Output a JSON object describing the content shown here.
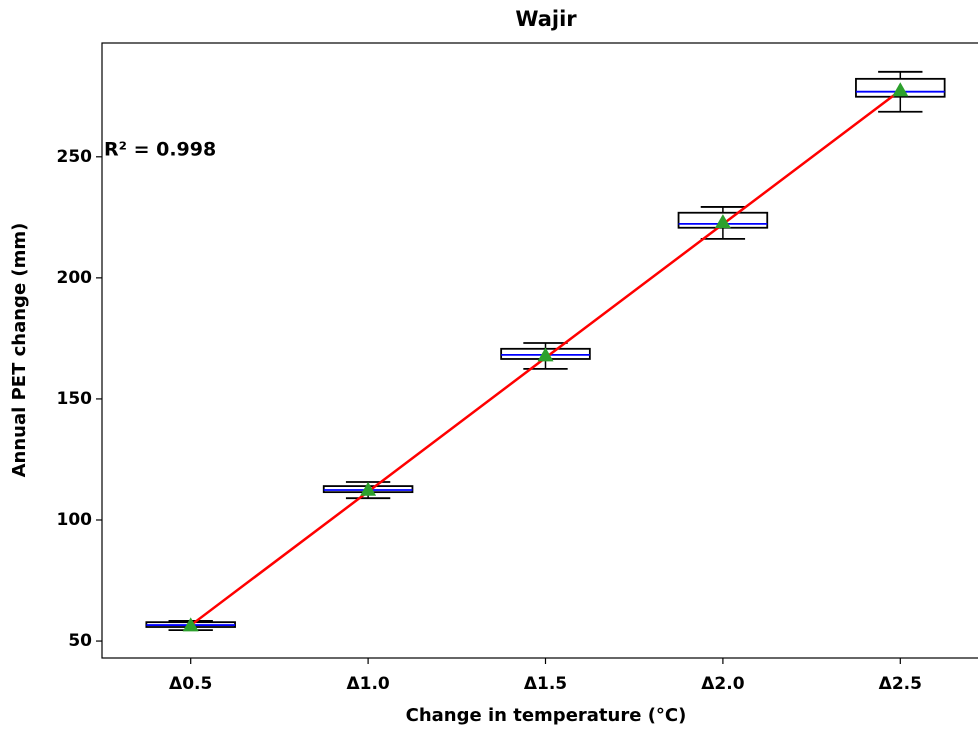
{
  "chart_data": {
    "type": "box",
    "title": "Wajir",
    "x_label": "Change in temperature (°C)",
    "y_label": "Annual PET change (mm)",
    "annotation": "R² = 0.998",
    "categories": [
      "Δ0.5",
      "Δ1.0",
      "Δ1.5",
      "Δ2.0",
      "Δ2.5"
    ],
    "boxes": [
      {
        "min": 54.5,
        "q1": 55.8,
        "median": 56.6,
        "q3": 57.8,
        "max": 58.3,
        "mean": 56.5
      },
      {
        "min": 109,
        "q1": 111.5,
        "median": 112.4,
        "q3": 114,
        "max": 115.7,
        "mean": 112.5
      },
      {
        "min": 162.4,
        "q1": 166.5,
        "median": 168.2,
        "q3": 170.7,
        "max": 173.1,
        "mean": 168
      },
      {
        "min": 216.1,
        "q1": 220.7,
        "median": 222.3,
        "q3": 226.9,
        "max": 229.3,
        "mean": 223
      },
      {
        "min": 268.6,
        "q1": 274.8,
        "median": 276.9,
        "q3": 282.2,
        "max": 285.1,
        "mean": 277.5
      }
    ],
    "trend_values": [
      56.5,
      111.7,
      167,
      222.2,
      277.4
    ],
    "box_color": "#000000",
    "median_color": "#0000ff",
    "mean_color": "#2ca02c",
    "trend_color": "#ff0000",
    "ylim": [
      43,
      297
    ],
    "yticks": [
      50,
      100,
      150,
      200,
      250
    ]
  }
}
